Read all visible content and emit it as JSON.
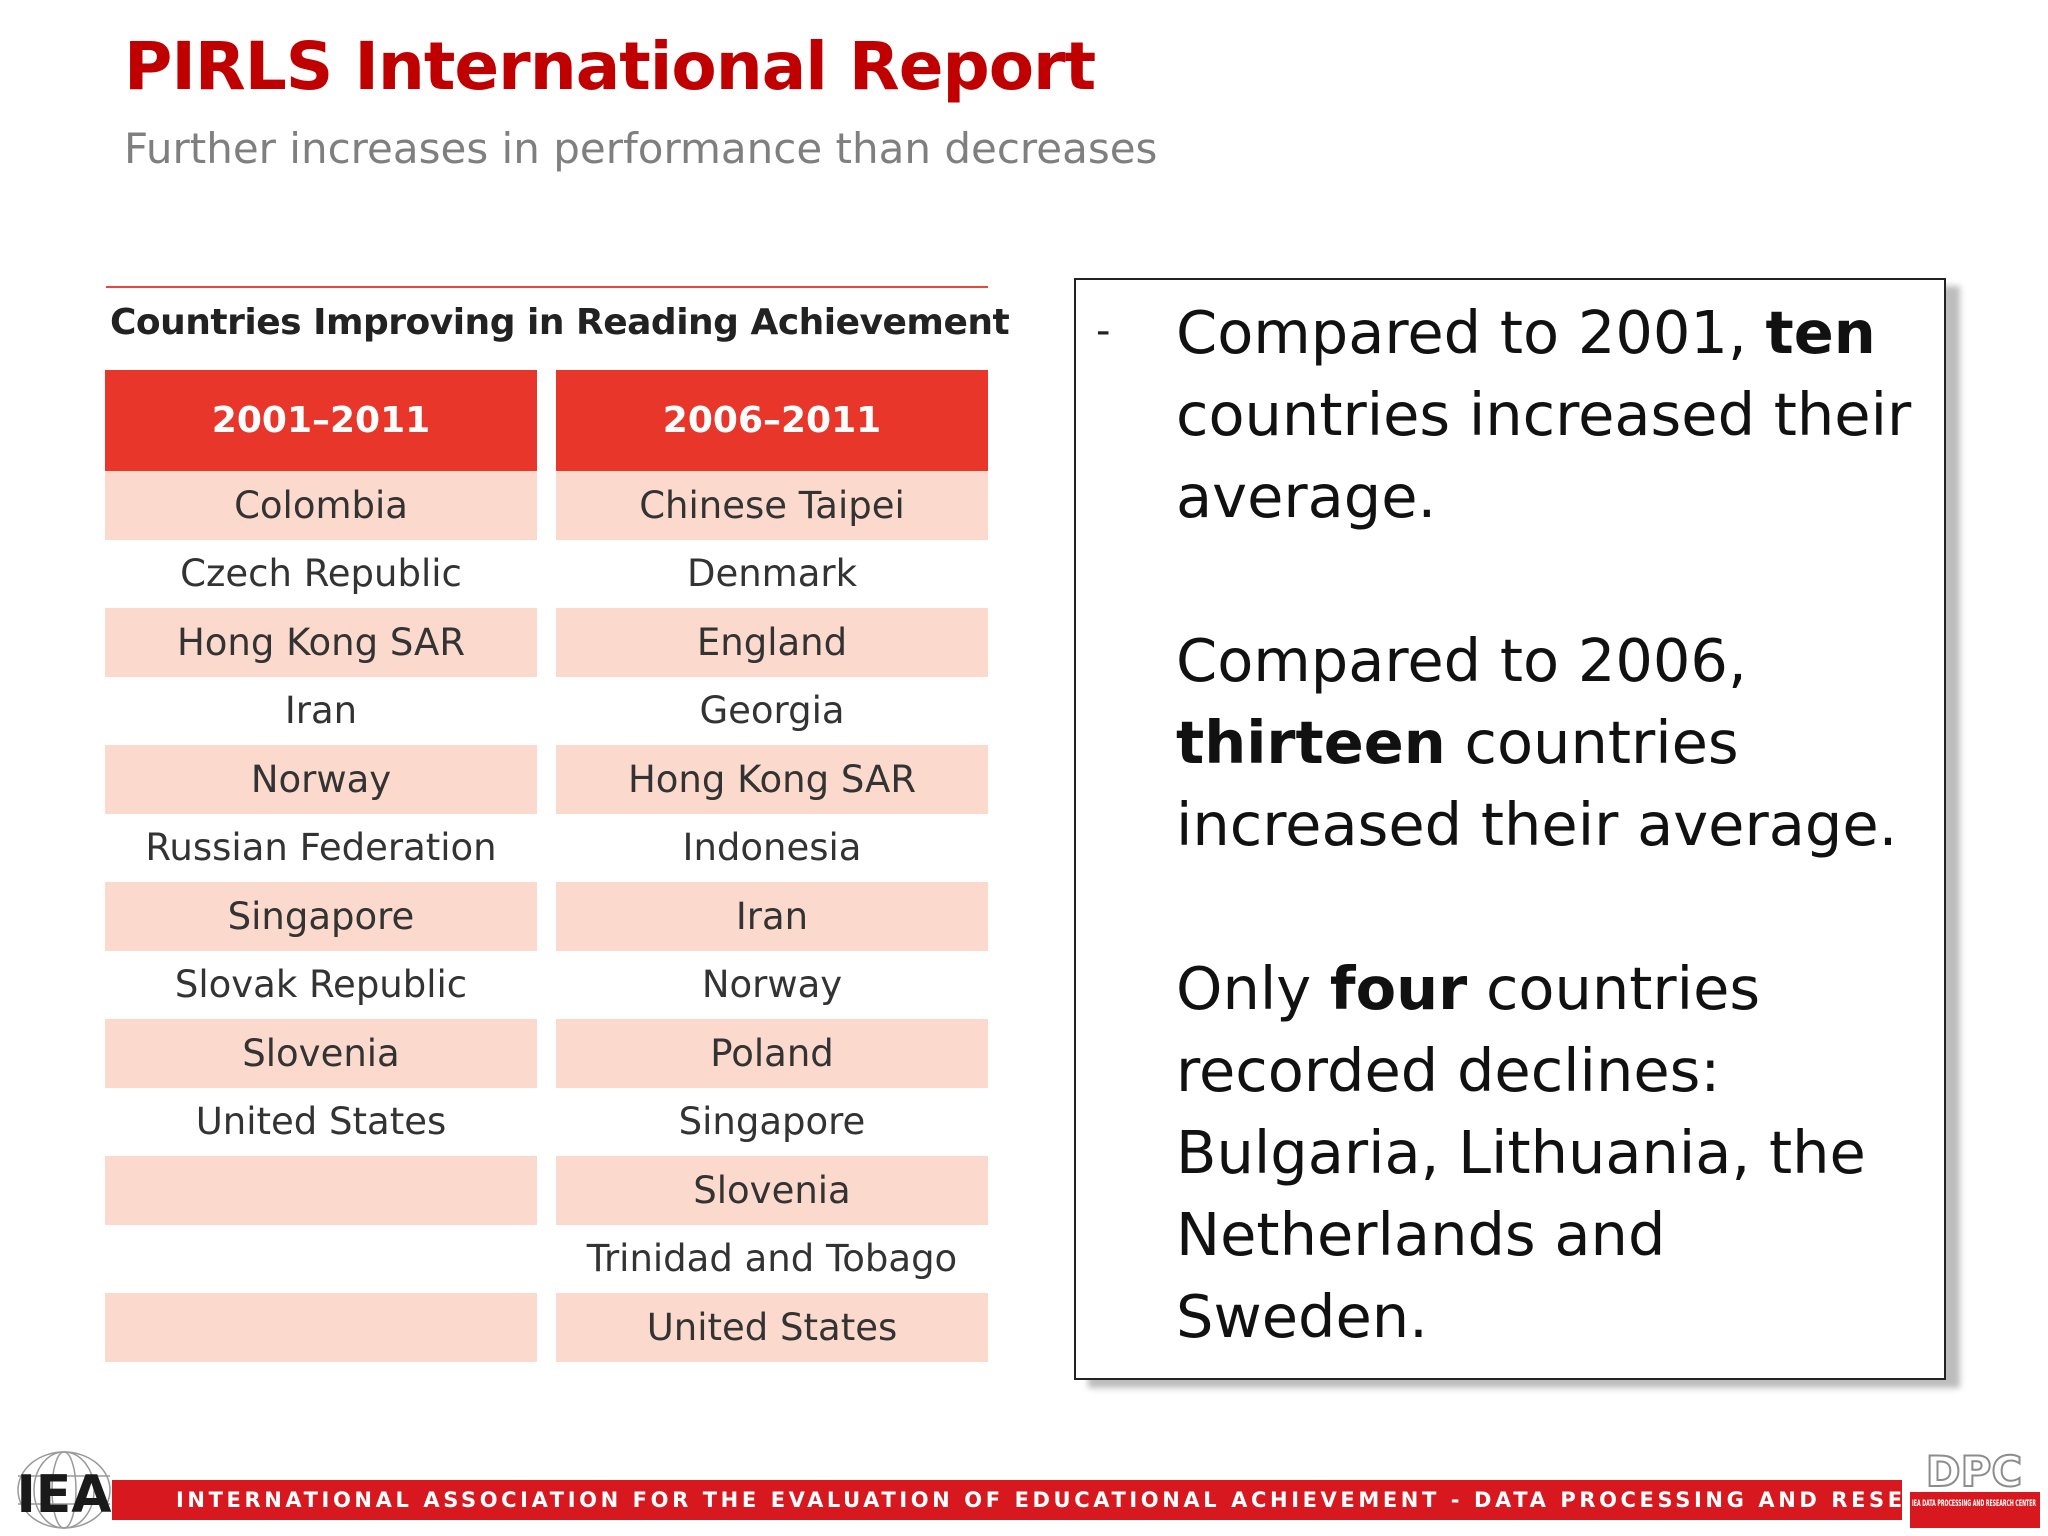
{
  "header": {
    "title": "PIRLS International Report",
    "subtitle": "Further increases in performance than decreases"
  },
  "table": {
    "caption": "Countries Improving in Reading Achievement",
    "columns": [
      {
        "heading": "2001–2011",
        "rows": [
          "Colombia",
          "Czech Republic",
          "Hong Kong SAR",
          "Iran",
          "Norway",
          "Russian Federation",
          "Singapore",
          "Slovak Republic",
          "Slovenia",
          "United States",
          "",
          "",
          ""
        ]
      },
      {
        "heading": "2006–2011",
        "rows": [
          "Chinese Taipei",
          "Denmark",
          "England",
          "Georgia",
          "Hong Kong SAR",
          "Indonesia",
          "Iran",
          "Norway",
          "Poland",
          "Singapore",
          "Slovenia",
          "Trinidad and Tobago",
          "United States"
        ]
      }
    ]
  },
  "textbox": {
    "bullet": "-",
    "p1": {
      "before": "Compared to 2001, ",
      "bold": "ten",
      "after": " countries increased their average."
    },
    "p2": {
      "before": "Compared to 2006, ",
      "bold": "thirteen",
      "after": " countries increased their average."
    },
    "p3": {
      "before": "Only ",
      "bold": "four",
      "after": " countries recorded declines: Bulgaria, Lithuania, the Netherlands and Sweden."
    }
  },
  "footer": {
    "text": "INTERNATIONAL ASSOCIATION FOR THE EVALUATION OF EDUCATIONAL ACHIEVEMENT - DATA PROCESSING AND RESEARCH CENTER",
    "left_logo": "IEA",
    "right_logo": "DPC",
    "right_logo_sub": "IEA DATA PROCESSING AND RESEARCH CENTER"
  },
  "colors": {
    "title": "#c00000",
    "table_header": "#e8362a",
    "row_shade": "#fbd9cc",
    "footer_bar": "#d7191f"
  }
}
